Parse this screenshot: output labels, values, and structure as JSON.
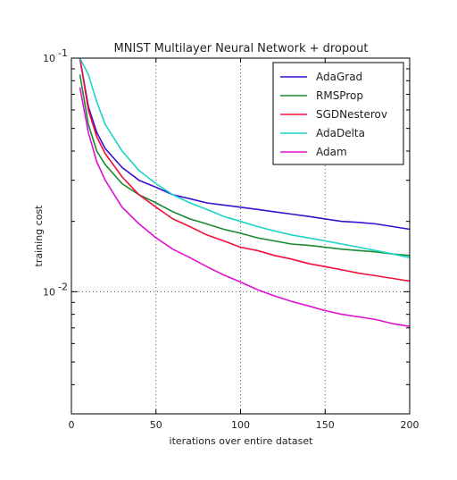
{
  "chart_data": {
    "type": "line",
    "title": "MNIST Multilayer Neural Network + dropout",
    "xlabel": "iterations over entire dataset",
    "ylabel": "training cost",
    "xlim": [
      0,
      200
    ],
    "ylim": [
      0.003,
      0.1
    ],
    "yscale": "log",
    "grid": true,
    "legend_position": "top-right",
    "x_ticks": [
      {
        "value": 0,
        "label": "0"
      },
      {
        "value": 50,
        "label": "50"
      },
      {
        "value": 100,
        "label": "100"
      },
      {
        "value": 150,
        "label": "150"
      },
      {
        "value": 200,
        "label": "200"
      }
    ],
    "y_ticks": [
      {
        "value": 0.1,
        "label_base": "10",
        "label_exp": "-1"
      },
      {
        "value": 0.01,
        "label_base": "10",
        "label_exp": "-2"
      }
    ],
    "x": [
      5,
      10,
      15,
      20,
      30,
      40,
      50,
      60,
      70,
      80,
      90,
      100,
      110,
      120,
      130,
      140,
      150,
      160,
      170,
      180,
      190,
      200
    ],
    "series": [
      {
        "name": "AdaGrad",
        "color": "#3a0fd0",
        "values": [
          0.1,
          0.062,
          0.048,
          0.041,
          0.034,
          0.03,
          0.028,
          0.026,
          0.025,
          0.024,
          0.0235,
          0.023,
          0.0225,
          0.022,
          0.0215,
          0.021,
          0.0205,
          0.02,
          0.0198,
          0.0195,
          0.019,
          0.0185
        ]
      },
      {
        "name": "RMSProp",
        "color": "#1a8a2e",
        "values": [
          0.085,
          0.052,
          0.04,
          0.035,
          0.029,
          0.026,
          0.024,
          0.022,
          0.0205,
          0.0195,
          0.0185,
          0.0178,
          0.017,
          0.0165,
          0.016,
          0.0158,
          0.0155,
          0.0152,
          0.015,
          0.0148,
          0.0145,
          0.0143
        ]
      },
      {
        "name": "SGDNesterov",
        "color": "#f0103a",
        "values": [
          0.1,
          0.06,
          0.046,
          0.039,
          0.031,
          0.026,
          0.023,
          0.0205,
          0.019,
          0.0175,
          0.0165,
          0.0155,
          0.015,
          0.0143,
          0.0138,
          0.0132,
          0.0128,
          0.0124,
          0.012,
          0.0117,
          0.0114,
          0.0111
        ]
      },
      {
        "name": "AdaDelta",
        "color": "#1ad4c8",
        "values": [
          0.1,
          0.085,
          0.065,
          0.052,
          0.04,
          0.033,
          0.029,
          0.026,
          0.024,
          0.0225,
          0.021,
          0.02,
          0.019,
          0.0182,
          0.0175,
          0.017,
          0.0165,
          0.016,
          0.0155,
          0.015,
          0.0145,
          0.014
        ]
      },
      {
        "name": "Adam",
        "color": "#e010d0",
        "values": [
          0.075,
          0.048,
          0.036,
          0.03,
          0.023,
          0.0195,
          0.017,
          0.0152,
          0.014,
          0.0128,
          0.0118,
          0.011,
          0.0102,
          0.0096,
          0.0091,
          0.0087,
          0.0083,
          0.008,
          0.0078,
          0.0076,
          0.0073,
          0.0071
        ]
      }
    ]
  }
}
